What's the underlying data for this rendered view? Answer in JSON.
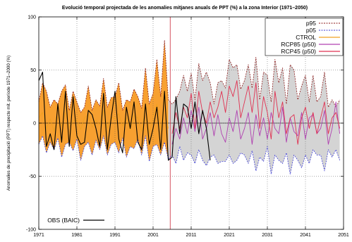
{
  "chart_data": {
    "type": "line",
    "title": "Evolució temporal projectada de les anomalies mitjanes anuals de PPT (%) a la zona Interior (1971–2050)",
    "xlabel": "",
    "ylabel": "Anomalies de precipitació (PPT) respecte mit. període 1971–2000 (%)",
    "xlim": [
      1971,
      2051
    ],
    "ylim": [
      -100,
      100
    ],
    "x_ticks": [
      1971,
      1981,
      1991,
      2001,
      2011,
      2021,
      2031,
      2041,
      2051
    ],
    "y_ticks": [
      -100,
      -50,
      0,
      50,
      100
    ],
    "grid": "dotted",
    "zero_line": true,
    "reference_year": 2005.5,
    "colors": {
      "p95": "#8b1a1a",
      "p05": "#3b3bd6",
      "ctrol_fill": "#f7a030",
      "ctrol_line": "#f0a020",
      "scen_fill": "#d4d4d4",
      "rcp85": "#b040b0",
      "rcp45": "#e03050",
      "obs": "#000000",
      "ref_line": "#d04050"
    },
    "series": [
      {
        "name": "p95",
        "x": [
          1971,
          1972,
          1973,
          1974,
          1975,
          1976,
          1977,
          1978,
          1979,
          1980,
          1981,
          1982,
          1983,
          1984,
          1985,
          1986,
          1987,
          1988,
          1989,
          1990,
          1991,
          1992,
          1993,
          1994,
          1995,
          1996,
          1997,
          1998,
          1999,
          2000,
          2001,
          2002,
          2003,
          2004,
          2005,
          2006,
          2007,
          2008,
          2009,
          2010,
          2011,
          2012,
          2013,
          2014,
          2015,
          2016,
          2017,
          2018,
          2019,
          2020,
          2021,
          2022,
          2023,
          2024,
          2025,
          2026,
          2027,
          2028,
          2029,
          2030,
          2031,
          2032,
          2033,
          2034,
          2035,
          2036,
          2037,
          2038,
          2039,
          2040,
          2041,
          2042,
          2043,
          2044,
          2045,
          2046,
          2047,
          2048,
          2049,
          2050
        ],
        "values": [
          20,
          38,
          30,
          15,
          22,
          18,
          30,
          36,
          12,
          30,
          20,
          10,
          15,
          35,
          12,
          22,
          16,
          42,
          15,
          24,
          25,
          38,
          12,
          22,
          20,
          32,
          25,
          14,
          52,
          18,
          28,
          60,
          25,
          78,
          22,
          18,
          22,
          30,
          45,
          30,
          47,
          22,
          56,
          40,
          48,
          38,
          18,
          38,
          40,
          33,
          60,
          52,
          55,
          32,
          40,
          55,
          33,
          62,
          22,
          48,
          45,
          20,
          60,
          38,
          52,
          18,
          55,
          50,
          22,
          35,
          45,
          20,
          45,
          20,
          25,
          48,
          15,
          22,
          15,
          22
        ]
      },
      {
        "name": "p05",
        "x": [
          1971,
          1972,
          1973,
          1974,
          1975,
          1976,
          1977,
          1978,
          1979,
          1980,
          1981,
          1982,
          1983,
          1984,
          1985,
          1986,
          1987,
          1988,
          1989,
          1990,
          1991,
          1992,
          1993,
          1994,
          1995,
          1996,
          1997,
          1998,
          1999,
          2000,
          2001,
          2002,
          2003,
          2004,
          2005,
          2006,
          2007,
          2008,
          2009,
          2010,
          2011,
          2012,
          2013,
          2014,
          2015,
          2016,
          2017,
          2018,
          2019,
          2020,
          2021,
          2022,
          2023,
          2024,
          2025,
          2026,
          2027,
          2028,
          2029,
          2030,
          2031,
          2032,
          2033,
          2034,
          2035,
          2036,
          2037,
          2038,
          2039,
          2040,
          2041,
          2042,
          2043,
          2044,
          2045,
          2046,
          2047,
          2048,
          2049,
          2050
        ],
        "values": [
          -20,
          -12,
          -28,
          -18,
          -25,
          -14,
          -32,
          -20,
          -18,
          -26,
          -15,
          -35,
          -22,
          -18,
          -30,
          -16,
          -25,
          -12,
          -30,
          -20,
          -18,
          -28,
          -14,
          -32,
          -22,
          -24,
          -15,
          -30,
          -12,
          -36,
          -22,
          -20,
          -30,
          -18,
          -34,
          -30,
          -38,
          -22,
          -35,
          -28,
          -30,
          -38,
          -25,
          -35,
          -40,
          -32,
          -30,
          -38,
          -36,
          -36,
          -30,
          -38,
          -35,
          -28,
          -30,
          -38,
          -26,
          -45,
          -32,
          -36,
          -22,
          -48,
          -30,
          -35,
          -38,
          -28,
          -48,
          -30,
          -35,
          -42,
          -30,
          -38,
          -25,
          -30,
          -30,
          -45,
          -25,
          -32,
          -25,
          -35
        ]
      },
      {
        "name": "CTROL",
        "x": [
          1971,
          1972,
          1973,
          1974,
          1975,
          1976,
          1977,
          1978,
          1979,
          1980,
          1981,
          1982,
          1983,
          1984,
          1985,
          1986,
          1987,
          1988,
          1989,
          1990,
          1991,
          1992,
          1993,
          1994,
          1995,
          1996,
          1997,
          1998,
          1999,
          2000,
          2001,
          2002,
          2003,
          2004,
          2005
        ],
        "values": [
          5,
          10,
          -5,
          4,
          -8,
          6,
          -3,
          10,
          -4,
          2,
          3,
          -6,
          5,
          8,
          -4,
          3,
          -2,
          12,
          -5,
          6,
          4,
          9,
          -3,
          5,
          -6,
          7,
          5,
          -8,
          15,
          -10,
          6,
          18,
          -6,
          22,
          -5
        ]
      },
      {
        "name": "RCP85 (p50)",
        "x": [
          2006,
          2007,
          2008,
          2009,
          2010,
          2011,
          2012,
          2013,
          2014,
          2015,
          2016,
          2017,
          2018,
          2019,
          2020,
          2021,
          2022,
          2023,
          2024,
          2025,
          2026,
          2027,
          2028,
          2029,
          2030,
          2031,
          2032,
          2033,
          2034,
          2035,
          2036,
          2037,
          2038,
          2039,
          2040,
          2041,
          2042,
          2043,
          2044,
          2045,
          2046,
          2047,
          2048,
          2049,
          2050
        ],
        "values": [
          -20,
          -5,
          -15,
          5,
          -10,
          12,
          -8,
          15,
          -15,
          -5,
          10,
          -12,
          8,
          -10,
          -18,
          5,
          -8,
          12,
          -15,
          -5,
          10,
          -20,
          8,
          -12,
          5,
          -15,
          10,
          -5,
          -10,
          15,
          -18,
          5,
          -8,
          -12,
          10,
          -15,
          5,
          8,
          -10,
          -5,
          12,
          -20,
          -5,
          20,
          -10
        ]
      },
      {
        "name": "RCP45 (p50)",
        "x": [
          2006,
          2007,
          2008,
          2009,
          2010,
          2011,
          2012,
          2013,
          2014,
          2015,
          2016,
          2017,
          2018,
          2019,
          2020,
          2021,
          2022,
          2023,
          2024,
          2025,
          2026,
          2027,
          2028,
          2029,
          2030,
          2031,
          2032,
          2033,
          2034,
          2035,
          2036,
          2037,
          2038,
          2039,
          2040,
          2041,
          2042,
          2043,
          2044,
          2045,
          2046,
          2047,
          2048,
          2049,
          2050
        ],
        "values": [
          -10,
          10,
          -5,
          15,
          5,
          28,
          -5,
          30,
          10,
          0,
          20,
          5,
          15,
          30,
          10,
          35,
          25,
          40,
          5,
          20,
          35,
          10,
          38,
          -5,
          25,
          10,
          -15,
          30,
          5,
          20,
          -10,
          5,
          8,
          -20,
          5,
          15,
          -5,
          10,
          -10,
          5,
          20,
          -10,
          5,
          10,
          -5
        ]
      },
      {
        "name": "OBS (BAIC)",
        "x": [
          1971,
          1972,
          1973,
          1974,
          1975,
          1976,
          1977,
          1978,
          1979,
          1980,
          1981,
          1982,
          1983,
          1984,
          1985,
          1986,
          1987,
          1988,
          1989,
          1990,
          1991,
          1992,
          1993,
          1994,
          1995,
          1996,
          1997,
          1998,
          1999,
          2000,
          2001,
          2002,
          2003,
          2004,
          2005,
          2006,
          2007,
          2008,
          2009,
          2010,
          2011,
          2012,
          2013,
          2014,
          2015,
          2016
        ],
        "values": [
          40,
          48,
          -22,
          -10,
          -25,
          18,
          -18,
          30,
          -22,
          25,
          -12,
          -20,
          -18,
          12,
          8,
          -5,
          -22,
          28,
          -25,
          5,
          30,
          -15,
          -28,
          15,
          -5,
          20,
          -18,
          -25,
          18,
          -20,
          -5,
          15,
          -25,
          30,
          -35,
          -32,
          25,
          -10,
          18,
          15,
          -5,
          20,
          -10,
          12,
          -5,
          -35
        ]
      }
    ],
    "legend": {
      "placement": "top-right",
      "entries": [
        "p95",
        "p05",
        "CTROL",
        "RCP85 (p50)",
        "RCP45 (p50)"
      ]
    },
    "obs_legend": {
      "placement": "bottom-left",
      "entries": [
        "OBS (BAIC)"
      ]
    }
  }
}
